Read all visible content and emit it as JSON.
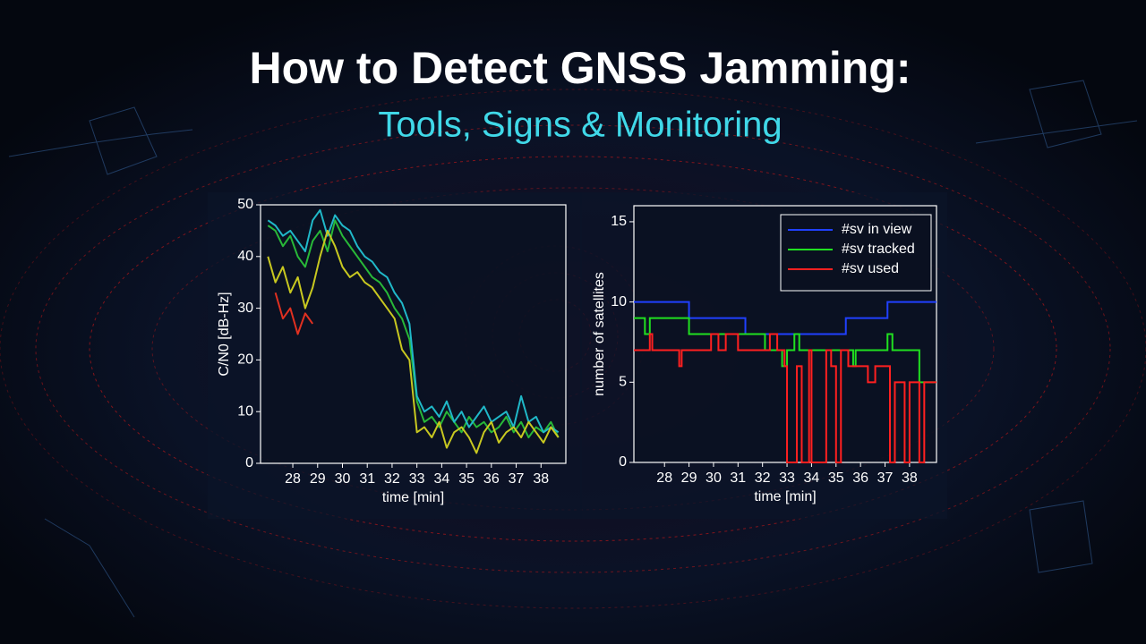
{
  "header": {
    "title": "How to Detect GNSS Jamming:",
    "subtitle": "Tools, Signs & Monitoring"
  },
  "chart_data": [
    {
      "type": "line",
      "x_label": "time [min]",
      "y_label": "C/N0 [dB-Hz]",
      "xlim": [
        26.7,
        39.0
      ],
      "xticks": [
        28,
        29,
        30,
        31,
        32,
        33,
        34,
        35,
        36,
        37,
        38
      ],
      "ylim": [
        0,
        50
      ],
      "yticks": [
        0,
        10,
        20,
        30,
        40,
        50
      ],
      "x": [
        27.0,
        27.3,
        27.6,
        27.9,
        28.2,
        28.5,
        28.8,
        29.1,
        29.4,
        29.7,
        30.0,
        30.3,
        30.6,
        30.9,
        31.2,
        31.5,
        31.8,
        32.1,
        32.4,
        32.7,
        33.0,
        33.3,
        33.6,
        33.9,
        34.2,
        34.5,
        34.8,
        35.1,
        35.4,
        35.7,
        36.0,
        36.3,
        36.6,
        36.9,
        37.2,
        37.5,
        37.8,
        38.1,
        38.4,
        38.7
      ],
      "series": [
        {
          "color": "#e03020",
          "values": [
            null,
            33,
            28,
            30,
            25,
            29,
            27,
            null,
            null,
            null,
            null,
            null,
            null,
            null,
            null,
            null,
            null,
            null,
            null,
            null,
            null,
            null,
            null,
            null,
            null,
            null,
            null,
            null,
            null,
            null,
            null,
            null,
            null,
            null,
            null,
            null,
            null,
            null,
            null,
            null
          ]
        },
        {
          "color": "#28b838",
          "values": [
            46,
            45,
            42,
            44,
            40,
            38,
            43,
            45,
            41,
            47,
            44,
            42,
            40,
            38,
            36,
            35,
            33,
            30,
            28,
            24,
            12,
            8,
            9,
            7,
            10,
            8,
            6,
            9,
            7,
            8,
            6,
            7,
            9,
            6,
            8,
            5,
            7,
            6,
            8,
            5
          ]
        },
        {
          "color": "#20b8c8",
          "values": [
            47,
            46,
            44,
            45,
            43,
            41,
            47,
            49,
            44,
            48,
            46,
            45,
            42,
            40,
            39,
            37,
            36,
            33,
            31,
            27,
            13,
            10,
            11,
            9,
            12,
            8,
            10,
            7,
            9,
            11,
            8,
            9,
            10,
            7,
            13,
            8,
            9,
            6,
            7,
            6
          ]
        },
        {
          "color": "#c8c820",
          "values": [
            40,
            35,
            38,
            33,
            36,
            30,
            34,
            40,
            45,
            42,
            38,
            36,
            37,
            35,
            34,
            32,
            30,
            28,
            22,
            20,
            6,
            7,
            5,
            8,
            3,
            6,
            7,
            5,
            2,
            6,
            8,
            4,
            6,
            7,
            5,
            8,
            6,
            4,
            7,
            5
          ]
        }
      ]
    },
    {
      "type": "step",
      "x_label": "time [min]",
      "y_label": "number of satellites",
      "xlim": [
        26.75,
        39.1
      ],
      "xticks": [
        28,
        29,
        30,
        31,
        32,
        33,
        34,
        35,
        36,
        37,
        38
      ],
      "ylim": [
        0,
        16
      ],
      "yticks": [
        0,
        5,
        10,
        15
      ],
      "legend": "upper right",
      "series": [
        {
          "name": "#sv in view",
          "color": "#2040ff",
          "x": [
            26.75,
            29.0,
            31.3,
            35.4,
            37.1
          ],
          "values": [
            10,
            9,
            8,
            9,
            10
          ]
        },
        {
          "name": "#sv tracked",
          "color": "#20e020",
          "x": [
            26.75,
            27.2,
            27.4,
            29.0,
            32.1,
            32.8,
            33.0,
            33.3,
            33.5,
            35.7,
            35.8,
            37.1,
            37.3,
            38.4
          ],
          "values": [
            9,
            8,
            9,
            8,
            7,
            6,
            7,
            8,
            7,
            6,
            7,
            8,
            7,
            5
          ]
        },
        {
          "name": "#sv used",
          "color": "#ff2020",
          "x": [
            26.75,
            27.4,
            27.5,
            28.6,
            28.7,
            29.9,
            30.2,
            30.5,
            31.0,
            32.3,
            32.6,
            32.9,
            33.0,
            33.4,
            33.6,
            33.9,
            34.0,
            34.6,
            34.8,
            35.0,
            35.2,
            35.5,
            36.3,
            36.6,
            37.2,
            37.4,
            37.8,
            38.0,
            38.4,
            38.6
          ],
          "values": [
            7,
            8,
            7,
            6,
            7,
            8,
            7,
            8,
            7,
            8,
            7,
            6,
            0,
            6,
            0,
            7,
            0,
            7,
            6,
            0,
            7,
            6,
            5,
            6,
            0,
            5,
            0,
            5,
            0,
            5
          ]
        }
      ]
    }
  ]
}
